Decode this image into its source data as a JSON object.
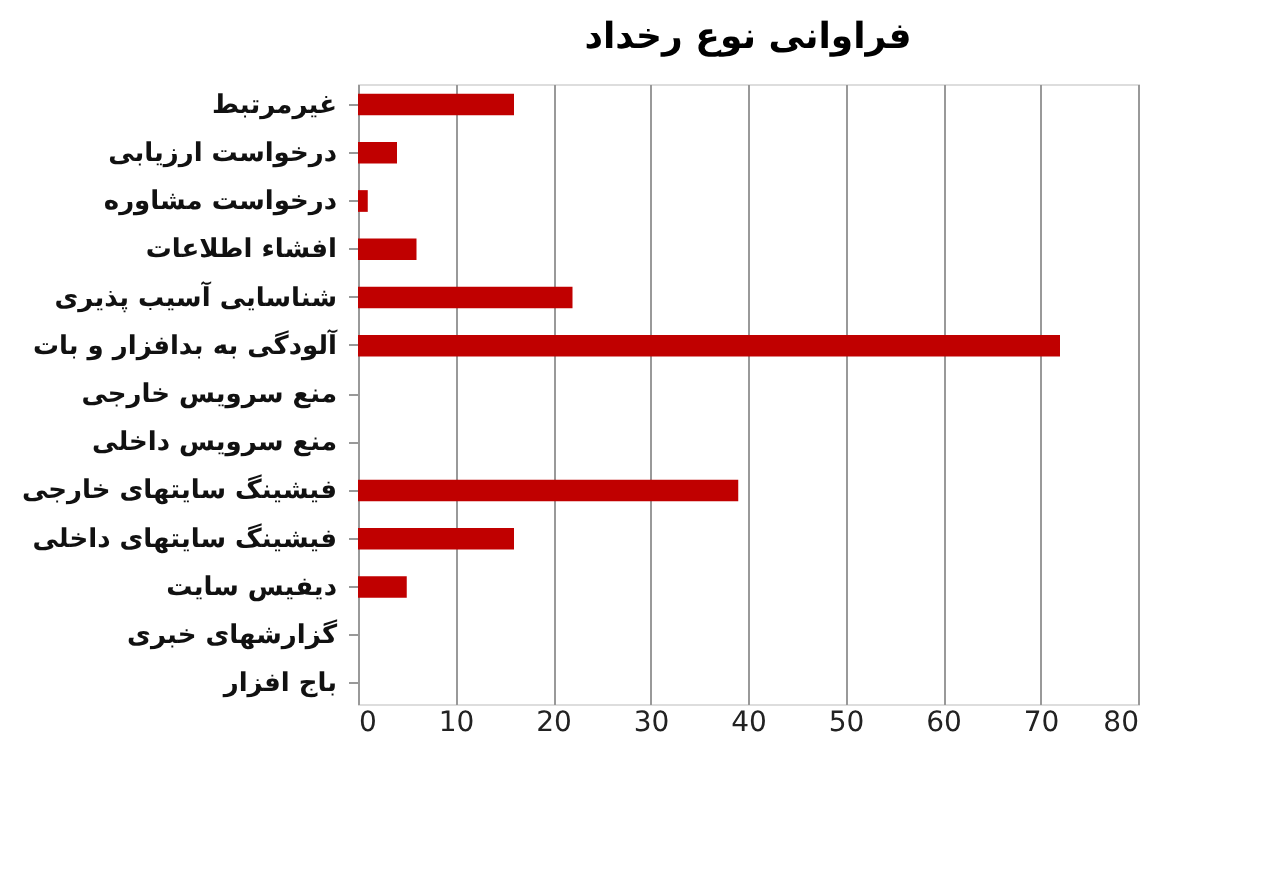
{
  "chart_data": {
    "type": "bar",
    "orientation": "horizontal",
    "title": "فراوانی نوع رخداد",
    "categories": [
      "غیرمرتبط",
      "درخواست ارزیابی",
      "درخواست مشاوره",
      "افشاء اطلاعات",
      "شناسایی آسیب پذیری",
      "آلودگی به بدافزار و بات",
      "منع سرویس خارجی",
      "منع سرویس داخلی",
      "فیشینگ سایتهای خارجی",
      "فیشینگ سایتهای داخلی",
      "دیفیس سایت",
      "گزارشهای خبری",
      "باج افزار"
    ],
    "values": [
      16,
      4,
      1,
      6,
      22,
      72,
      0,
      0,
      39,
      16,
      5,
      0,
      0
    ],
    "color": "#c00000",
    "xlim": [
      0,
      80
    ],
    "xticks": [
      0,
      10,
      20,
      30,
      40,
      50,
      60,
      70,
      80
    ],
    "grid": "x"
  }
}
